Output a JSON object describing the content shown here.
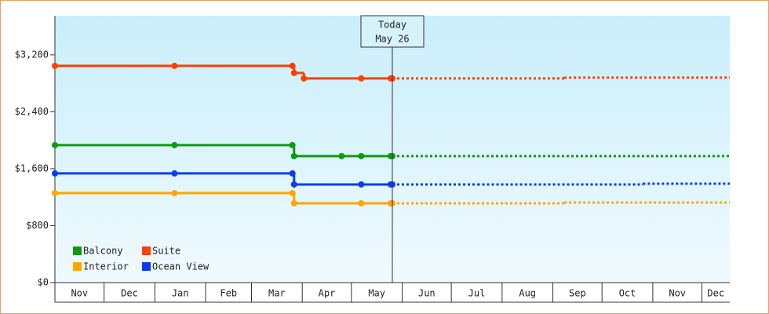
{
  "chart_data": {
    "type": "step-line",
    "xlim": [
      0,
      412
    ],
    "xticks": [
      {
        "value": 0,
        "label": "Nov"
      },
      {
        "value": 30,
        "label": "Dec"
      },
      {
        "value": 61,
        "label": "Jan"
      },
      {
        "value": 92,
        "label": "Feb"
      },
      {
        "value": 120,
        "label": "Mar"
      },
      {
        "value": 151,
        "label": "Apr"
      },
      {
        "value": 181,
        "label": "May"
      },
      {
        "value": 212,
        "label": "Jun"
      },
      {
        "value": 242,
        "label": "Jul"
      },
      {
        "value": 273,
        "label": "Aug"
      },
      {
        "value": 304,
        "label": "Sep"
      },
      {
        "value": 334,
        "label": "Oct"
      },
      {
        "value": 365,
        "label": "Nov"
      },
      {
        "value": 395,
        "label": "Dec"
      }
    ],
    "ylim": [
      0,
      3750
    ],
    "yticks": [
      {
        "value": 0,
        "label": "$0"
      },
      {
        "value": 800,
        "label": "$800"
      },
      {
        "value": 1600,
        "label": "$1,600"
      },
      {
        "value": 2400,
        "label": "$2,400"
      },
      {
        "value": 3200,
        "label": "$3,200"
      }
    ],
    "today": {
      "value": 206,
      "label": "Today",
      "date": "May 26"
    },
    "series": [
      {
        "name": "Balcony",
        "color": "#109a10",
        "x": [
          0,
          73,
          145,
          146,
          175,
          187,
          205,
          206
        ],
        "values": [
          1931,
          1931,
          1931,
          1777,
          1777,
          1777,
          1777,
          1777
        ],
        "forecast_x": [
          206,
          412
        ],
        "forecast_values": [
          1777,
          1777
        ]
      },
      {
        "name": "Suite",
        "color": "#ff4000",
        "x": [
          0,
          73,
          145,
          146,
          152,
          187,
          205,
          206
        ],
        "values": [
          3045,
          3045,
          3045,
          2946,
          2869,
          2869,
          2869,
          2869
        ],
        "forecast_x": [
          206,
          311,
          412
        ],
        "forecast_values": [
          2869,
          2880,
          2880
        ]
      },
      {
        "name": "Interior",
        "color": "#ffa500",
        "x": [
          0,
          73,
          145,
          146,
          187,
          205,
          206
        ],
        "values": [
          1258,
          1258,
          1258,
          1114,
          1114,
          1114,
          1114
        ],
        "forecast_x": [
          206,
          311,
          412
        ],
        "forecast_values": [
          1114,
          1125,
          1125
        ]
      },
      {
        "name": "Ocean View",
        "color": "#0a3cf0",
        "x": [
          0,
          73,
          145,
          146,
          187,
          205,
          206
        ],
        "values": [
          1534,
          1534,
          1534,
          1379,
          1379,
          1379,
          1379
        ],
        "forecast_x": [
          206,
          258,
          359,
          412
        ],
        "forecast_values": [
          1379,
          1379,
          1390,
          1390
        ]
      }
    ]
  }
}
